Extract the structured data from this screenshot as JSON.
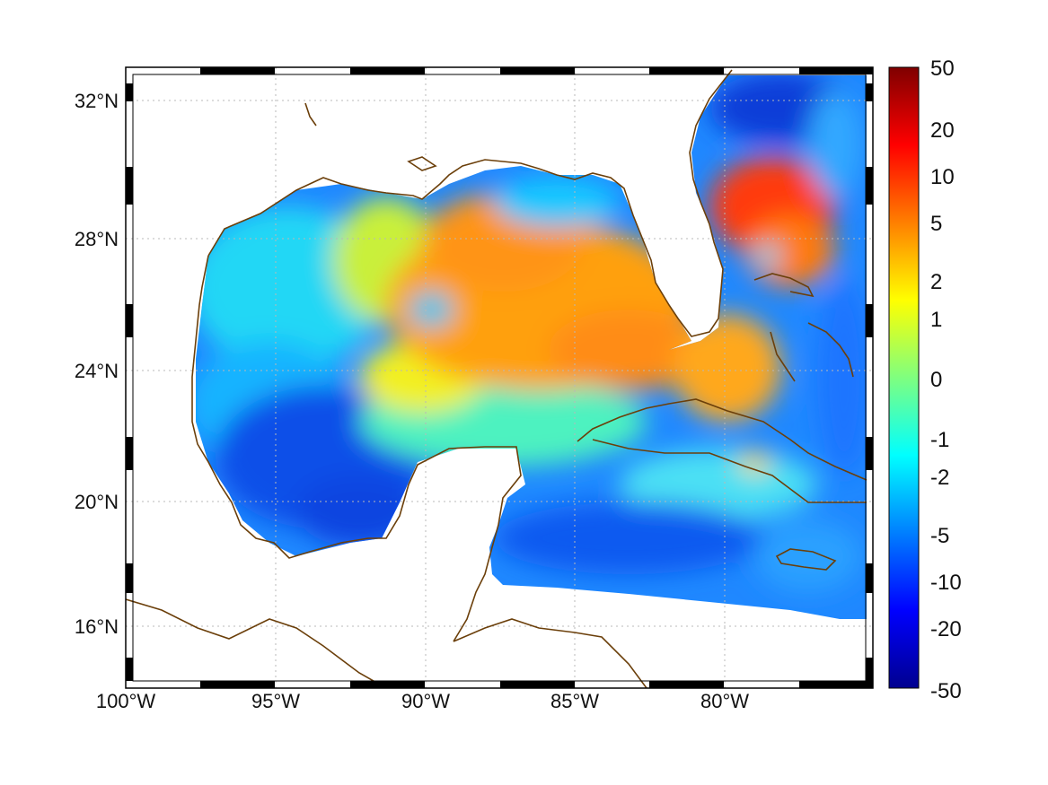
{
  "map": {
    "lon_labels": [
      "100°W",
      "95°W",
      "90°W",
      "85°W",
      "80°W"
    ],
    "lat_labels": [
      "32°N",
      "28°N",
      "24°N",
      "20°N",
      "16°N"
    ],
    "coastline_color": "#6b3f0a",
    "grid": true,
    "grid_style": "dotted",
    "frame": "black-white checkered border"
  },
  "colorbar": {
    "labels": [
      "50",
      "20",
      "10",
      "5",
      "2",
      "1",
      "0",
      "-1",
      "-2",
      "-5",
      "-10",
      "-20",
      "-50"
    ],
    "colormap": "jet",
    "colors": [
      "#00008f",
      "#0000ff",
      "#007fff",
      "#00ffff",
      "#7fff7f",
      "#ffff00",
      "#ff7f00",
      "#ff0000",
      "#7f0000"
    ]
  }
}
